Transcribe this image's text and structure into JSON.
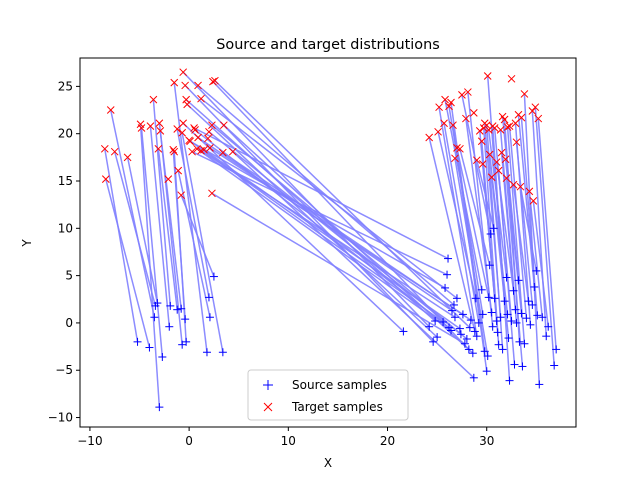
{
  "chart_data": {
    "type": "scatter",
    "title": "Source and target distributions",
    "xlabel": "X",
    "ylabel": "Y",
    "xlim": [
      -11.0,
      39.0
    ],
    "ylim": [
      -11.0,
      28.0
    ],
    "xticks": [
      -10,
      0,
      10,
      20,
      30
    ],
    "yticks": [
      -10,
      -5,
      0,
      5,
      10,
      15,
      20,
      25
    ],
    "grid": false,
    "legend_position": "lower-center",
    "colors": {
      "source": "#0000ff",
      "target": "#ff0000",
      "link": "#8080ff"
    },
    "series": [
      {
        "name": "Source samples",
        "marker": "+",
        "points": [
          [
            -3.0,
            -8.9
          ],
          [
            -5.2,
            -2.0
          ],
          [
            -4.0,
            -2.6
          ],
          [
            -2.7,
            -3.6
          ],
          [
            -3.4,
            1.8
          ],
          [
            -3.5,
            0.6
          ],
          [
            -3.2,
            2.1
          ],
          [
            -2.0,
            -0.4
          ],
          [
            -1.9,
            1.8
          ],
          [
            -1.2,
            1.4
          ],
          [
            -0.8,
            1.5
          ],
          [
            -0.7,
            -2.3
          ],
          [
            -0.3,
            -2.0
          ],
          [
            -0.4,
            0.4
          ],
          [
            1.8,
            -3.1
          ],
          [
            2.0,
            2.7
          ],
          [
            2.1,
            0.6
          ],
          [
            2.5,
            4.9
          ],
          [
            3.4,
            -3.1
          ],
          [
            21.6,
            -0.9
          ],
          [
            24.2,
            -0.4
          ],
          [
            24.6,
            -2.0
          ],
          [
            24.8,
            0.2
          ],
          [
            25.0,
            -1.5
          ],
          [
            25.6,
            0.1
          ],
          [
            25.8,
            3.7
          ],
          [
            26.0,
            5.1
          ],
          [
            26.1,
            6.8
          ],
          [
            26.2,
            -0.5
          ],
          [
            26.4,
            -0.8
          ],
          [
            26.5,
            1.3
          ],
          [
            26.7,
            1.9
          ],
          [
            26.8,
            0.6
          ],
          [
            27.0,
            2.6
          ],
          [
            27.3,
            -0.6
          ],
          [
            27.4,
            -1.2
          ],
          [
            27.6,
            0.9
          ],
          [
            27.8,
            -2.2
          ],
          [
            28.0,
            -1.7
          ],
          [
            28.2,
            -2.8
          ],
          [
            28.3,
            -0.5
          ],
          [
            28.4,
            0.3
          ],
          [
            28.6,
            -3.2
          ],
          [
            28.7,
            -5.8
          ],
          [
            28.8,
            -0.9
          ],
          [
            28.9,
            2.6
          ],
          [
            29.0,
            -1.4
          ],
          [
            29.2,
            0.0
          ],
          [
            29.5,
            3.5
          ],
          [
            29.6,
            0.9
          ],
          [
            29.8,
            -3.0
          ],
          [
            30.0,
            -5.1
          ],
          [
            30.1,
            -3.5
          ],
          [
            30.2,
            2.7
          ],
          [
            30.3,
            6.1
          ],
          [
            30.4,
            9.4
          ],
          [
            30.5,
            1.1
          ],
          [
            30.6,
            -0.4
          ],
          [
            30.7,
            10.0
          ],
          [
            30.8,
            2.6
          ],
          [
            31.0,
            0.2
          ],
          [
            31.1,
            -1.0
          ],
          [
            31.2,
            -2.3
          ],
          [
            31.4,
            0.6
          ],
          [
            31.6,
            -2.8
          ],
          [
            31.8,
            2.3
          ],
          [
            32.0,
            4.8
          ],
          [
            32.1,
            0.9
          ],
          [
            32.2,
            -1.6
          ],
          [
            32.3,
            -6.1
          ],
          [
            32.5,
            0.2
          ],
          [
            32.7,
            3.4
          ],
          [
            32.8,
            -4.4
          ],
          [
            32.9,
            1.4
          ],
          [
            33.0,
            0.0
          ],
          [
            33.2,
            4.5
          ],
          [
            33.3,
            -2.0
          ],
          [
            33.5,
            1.0
          ],
          [
            33.6,
            -4.6
          ],
          [
            33.8,
            -2.2
          ],
          [
            34.0,
            0.5
          ],
          [
            34.2,
            2.3
          ],
          [
            34.4,
            -0.2
          ],
          [
            34.6,
            1.9
          ],
          [
            34.8,
            3.8
          ],
          [
            35.0,
            5.5
          ],
          [
            35.1,
            0.8
          ],
          [
            35.3,
            -6.5
          ],
          [
            35.6,
            0.6
          ],
          [
            36.0,
            -1.4
          ],
          [
            36.2,
            -0.4
          ],
          [
            36.8,
            -4.5
          ],
          [
            37.0,
            -2.8
          ]
        ]
      },
      {
        "name": "Target samples",
        "marker": "x",
        "points": [
          [
            -8.4,
            15.2
          ],
          [
            -8.5,
            18.4
          ],
          [
            -7.5,
            18.1
          ],
          [
            -6.2,
            17.5
          ],
          [
            -7.9,
            22.5
          ],
          [
            -4.8,
            20.6
          ],
          [
            -4.9,
            21.0
          ],
          [
            -3.9,
            20.8
          ],
          [
            -3.6,
            23.6
          ],
          [
            -3.0,
            21.1
          ],
          [
            -3.1,
            18.4
          ],
          [
            -2.9,
            20.3
          ],
          [
            -2.1,
            15.2
          ],
          [
            -1.6,
            18.3
          ],
          [
            -1.5,
            18.1
          ],
          [
            -1.2,
            20.5
          ],
          [
            -1.1,
            16.1
          ],
          [
            -0.8,
            13.5
          ],
          [
            -0.6,
            21.1
          ],
          [
            -1.5,
            25.4
          ],
          [
            -0.6,
            26.5
          ],
          [
            -0.4,
            25.1
          ],
          [
            -0.3,
            23.6
          ],
          [
            -0.2,
            23.1
          ],
          [
            0.1,
            19.2
          ],
          [
            0.3,
            18.1
          ],
          [
            0.5,
            20.6
          ],
          [
            0.6,
            20.4
          ],
          [
            0.8,
            18.4
          ],
          [
            0.9,
            19.6
          ],
          [
            1.2,
            18.2
          ],
          [
            0.9,
            25.1
          ],
          [
            1.2,
            23.7
          ],
          [
            1.5,
            18.3
          ],
          [
            1.9,
            19.5
          ],
          [
            2.0,
            20.2
          ],
          [
            2.1,
            18.5
          ],
          [
            2.3,
            13.7
          ],
          [
            2.3,
            20.9
          ],
          [
            2.4,
            25.5
          ],
          [
            2.6,
            25.6
          ],
          [
            3.4,
            18.0
          ],
          [
            3.5,
            20.9
          ],
          [
            4.4,
            18.1
          ],
          [
            -0.7,
            20.1
          ],
          [
            0.0,
            19.3
          ],
          [
            24.2,
            19.6
          ],
          [
            25.1,
            20.2
          ],
          [
            25.2,
            22.8
          ],
          [
            25.7,
            21.1
          ],
          [
            25.8,
            23.6
          ],
          [
            26.2,
            22.9
          ],
          [
            26.4,
            23.3
          ],
          [
            26.6,
            20.9
          ],
          [
            26.8,
            17.4
          ],
          [
            27.0,
            18.5
          ],
          [
            27.3,
            18.4
          ],
          [
            27.5,
            24.1
          ],
          [
            27.9,
            21.6
          ],
          [
            28.1,
            24.4
          ],
          [
            28.7,
            22.2
          ],
          [
            29.0,
            17.2
          ],
          [
            29.3,
            20.3
          ],
          [
            29.5,
            19.2
          ],
          [
            29.6,
            16.8
          ],
          [
            29.7,
            20.6
          ],
          [
            29.8,
            21.1
          ],
          [
            30.0,
            20.9
          ],
          [
            30.1,
            26.1
          ],
          [
            30.2,
            20.4
          ],
          [
            30.3,
            17.8
          ],
          [
            30.5,
            15.4
          ],
          [
            30.6,
            20.8
          ],
          [
            30.8,
            20.6
          ],
          [
            31.0,
            17.0
          ],
          [
            31.2,
            16.1
          ],
          [
            31.4,
            20.4
          ],
          [
            31.5,
            18.0
          ],
          [
            31.6,
            21.8
          ],
          [
            31.8,
            21.5
          ],
          [
            31.9,
            17.3
          ],
          [
            32.0,
            15.3
          ],
          [
            32.1,
            20.7
          ],
          [
            32.3,
            20.8
          ],
          [
            32.5,
            25.8
          ],
          [
            32.7,
            14.6
          ],
          [
            32.9,
            21.1
          ],
          [
            33.0,
            19.1
          ],
          [
            33.2,
            22.0
          ],
          [
            33.4,
            14.4
          ],
          [
            33.5,
            21.7
          ],
          [
            33.8,
            24.2
          ],
          [
            34.3,
            13.9
          ],
          [
            34.6,
            22.4
          ],
          [
            34.7,
            12.9
          ],
          [
            34.9,
            22.8
          ],
          [
            35.2,
            21.6
          ]
        ]
      }
    ],
    "legend": {
      "source_label": "Source samples",
      "target_label": "Target samples"
    }
  }
}
